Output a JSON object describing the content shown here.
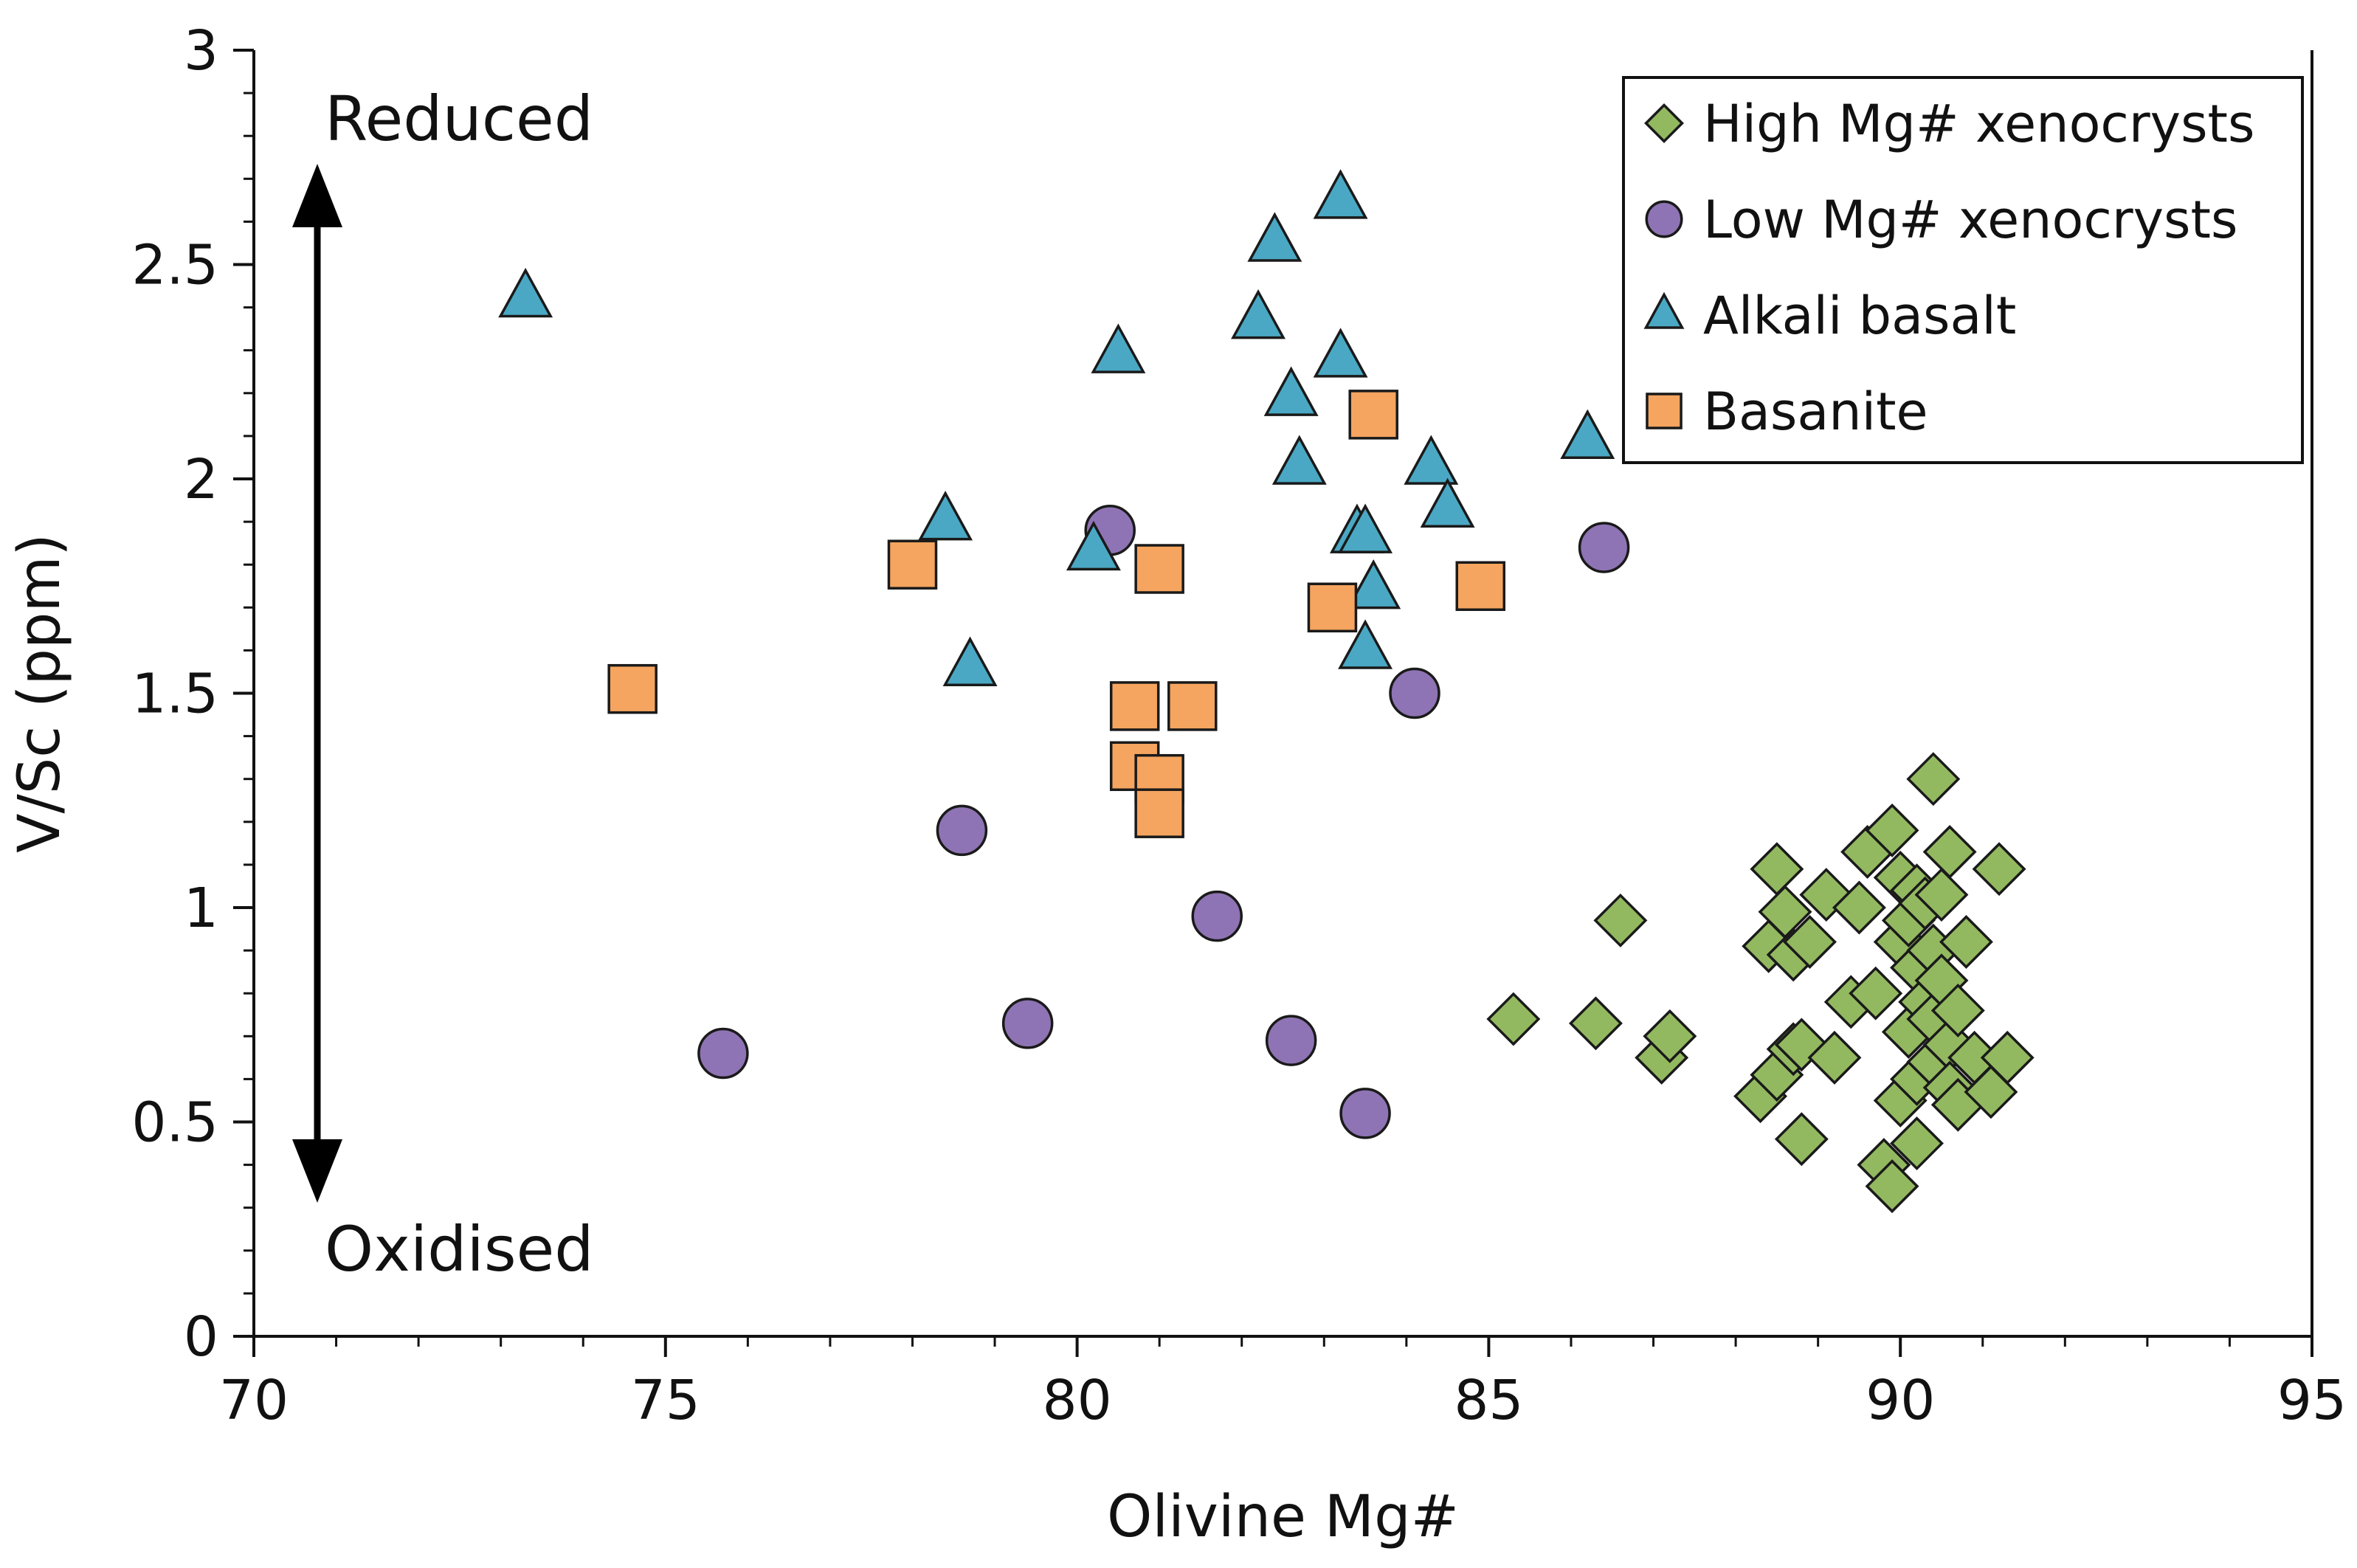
{
  "chart_data": {
    "type": "scatter",
    "title": "",
    "xlabel": "Olivine Mg#",
    "ylabel": "V/Sc (ppm)",
    "xlim": [
      70,
      95
    ],
    "ylim": [
      0,
      3
    ],
    "x_ticks": [
      70,
      75,
      80,
      85,
      90,
      95
    ],
    "y_ticks": [
      0,
      0.5,
      1,
      1.5,
      2,
      2.5,
      3
    ],
    "x_tick_labels": [
      "70",
      "75",
      "80",
      "85",
      "90",
      "95"
    ],
    "y_tick_labels": [
      "0",
      "0.5",
      "1",
      "1.5",
      "2",
      "2.5",
      "3"
    ],
    "grid": false,
    "legend_position": "top-right",
    "annotations": {
      "top": "Reduced",
      "bottom": "Oxidised"
    },
    "series": [
      {
        "name": "High Mg# xenocrysts",
        "marker": "diamond",
        "color": "#93b960",
        "points": [
          [
            85.3,
            0.74
          ],
          [
            86.3,
            0.73
          ],
          [
            86.6,
            0.97
          ],
          [
            87.1,
            0.65
          ],
          [
            87.2,
            0.7
          ],
          [
            88.3,
            0.56
          ],
          [
            88.4,
            0.91
          ],
          [
            88.5,
            1.09
          ],
          [
            88.5,
            0.61
          ],
          [
            88.6,
            0.99
          ],
          [
            88.7,
            0.89
          ],
          [
            88.7,
            0.67
          ],
          [
            88.8,
            0.68
          ],
          [
            88.8,
            0.46
          ],
          [
            88.9,
            0.92
          ],
          [
            89.1,
            1.03
          ],
          [
            89.2,
            0.65
          ],
          [
            89.4,
            0.78
          ],
          [
            89.5,
            1.0
          ],
          [
            89.6,
            1.13
          ],
          [
            89.7,
            0.8
          ],
          [
            89.8,
            0.4
          ],
          [
            89.9,
            0.35
          ],
          [
            89.9,
            1.18
          ],
          [
            90.0,
            1.07
          ],
          [
            90.0,
            0.92
          ],
          [
            90.0,
            0.55
          ],
          [
            90.1,
            0.97
          ],
          [
            90.1,
            0.71
          ],
          [
            90.2,
            1.04
          ],
          [
            90.2,
            0.86
          ],
          [
            90.2,
            0.6
          ],
          [
            90.2,
            0.45
          ],
          [
            90.3,
            1.01
          ],
          [
            90.3,
            0.78
          ],
          [
            90.4,
            1.3
          ],
          [
            90.4,
            0.9
          ],
          [
            90.4,
            0.74
          ],
          [
            90.4,
            0.64
          ],
          [
            90.5,
            1.03
          ],
          [
            90.5,
            0.83
          ],
          [
            90.6,
            1.13
          ],
          [
            90.6,
            0.68
          ],
          [
            90.6,
            0.58
          ],
          [
            90.7,
            0.76
          ],
          [
            90.7,
            0.54
          ],
          [
            90.8,
            0.92
          ],
          [
            90.9,
            0.65
          ],
          [
            91.1,
            0.57
          ],
          [
            91.2,
            1.09
          ],
          [
            91.3,
            0.65
          ]
        ]
      },
      {
        "name": "Low Mg# xenocrysts",
        "marker": "circle",
        "color": "#8e74b4",
        "points": [
          [
            75.7,
            0.66
          ],
          [
            78.6,
            1.18
          ],
          [
            79.4,
            0.73
          ],
          [
            80.4,
            1.88
          ],
          [
            81.7,
            0.98
          ],
          [
            82.6,
            0.69
          ],
          [
            83.5,
            0.52
          ],
          [
            84.1,
            1.5
          ],
          [
            86.4,
            1.84
          ]
        ]
      },
      {
        "name": "Alkali basalt",
        "marker": "triangle",
        "color": "#4aa8c4",
        "points": [
          [
            73.3,
            2.42
          ],
          [
            78.4,
            1.9
          ],
          [
            78.7,
            1.56
          ],
          [
            80.2,
            1.83
          ],
          [
            80.5,
            2.29
          ],
          [
            82.2,
            2.37
          ],
          [
            82.4,
            2.55
          ],
          [
            82.6,
            2.19
          ],
          [
            82.7,
            2.03
          ],
          [
            83.2,
            2.65
          ],
          [
            83.2,
            2.28
          ],
          [
            83.4,
            1.87
          ],
          [
            83.5,
            1.87
          ],
          [
            83.5,
            1.6
          ],
          [
            83.6,
            1.74
          ],
          [
            84.3,
            2.03
          ],
          [
            84.5,
            1.93
          ],
          [
            86.2,
            2.09
          ]
        ]
      },
      {
        "name": "Basanite",
        "marker": "square",
        "color": "#f5a55f",
        "points": [
          [
            74.6,
            1.51
          ],
          [
            78.0,
            1.8
          ],
          [
            80.7,
            1.47
          ],
          [
            80.7,
            1.33
          ],
          [
            81.0,
            1.79
          ],
          [
            81.0,
            1.3
          ],
          [
            81.0,
            1.22
          ],
          [
            81.4,
            1.47
          ],
          [
            83.1,
            1.7
          ],
          [
            83.6,
            2.15
          ],
          [
            84.9,
            1.75
          ]
        ]
      }
    ]
  }
}
